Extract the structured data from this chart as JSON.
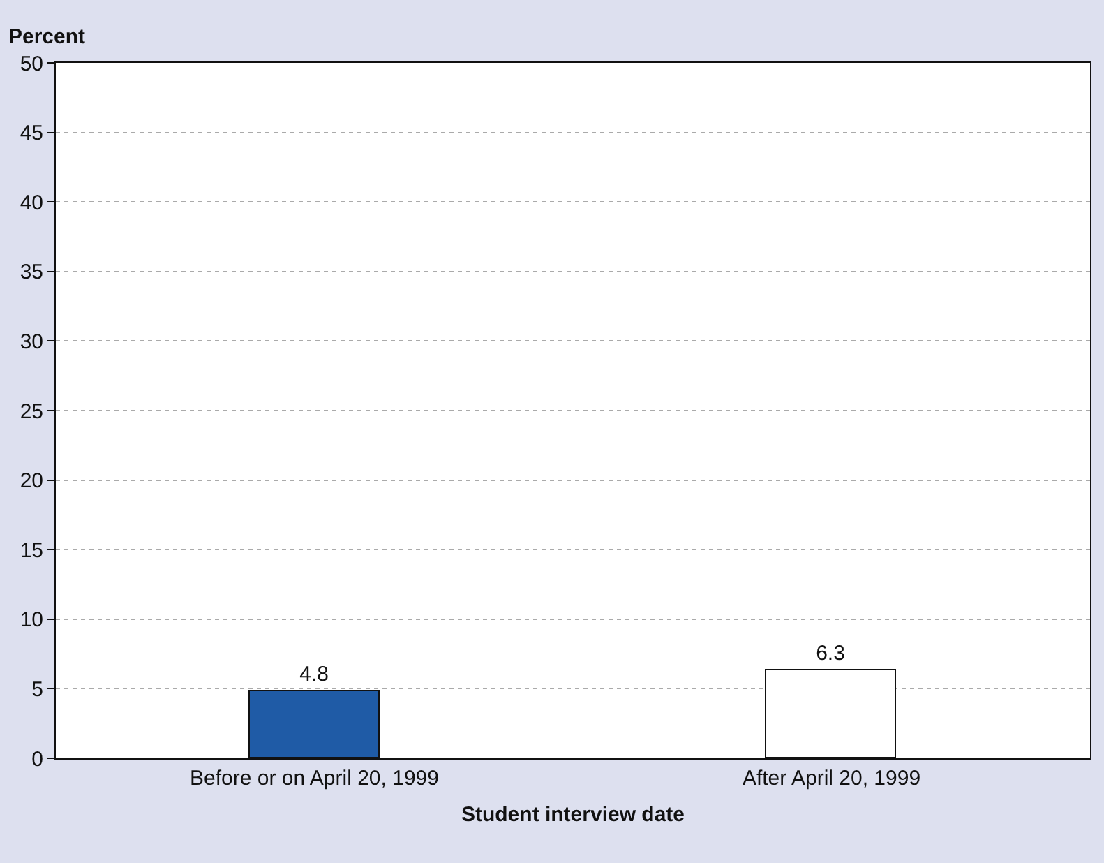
{
  "chart_data": {
    "type": "bar",
    "xlabel": "Student interview date",
    "ylabel": "Percent",
    "categories": [
      "Before or on April 20, 1999",
      "After April 20, 1999"
    ],
    "values": [
      4.8,
      6.3
    ],
    "colors": [
      "#1f5ba6",
      "#ffffff"
    ],
    "ylim": [
      0,
      50
    ],
    "yticks": [
      0,
      5,
      10,
      15,
      20,
      25,
      30,
      35,
      40,
      45,
      50
    ],
    "grid": "y",
    "data_labels": true
  }
}
